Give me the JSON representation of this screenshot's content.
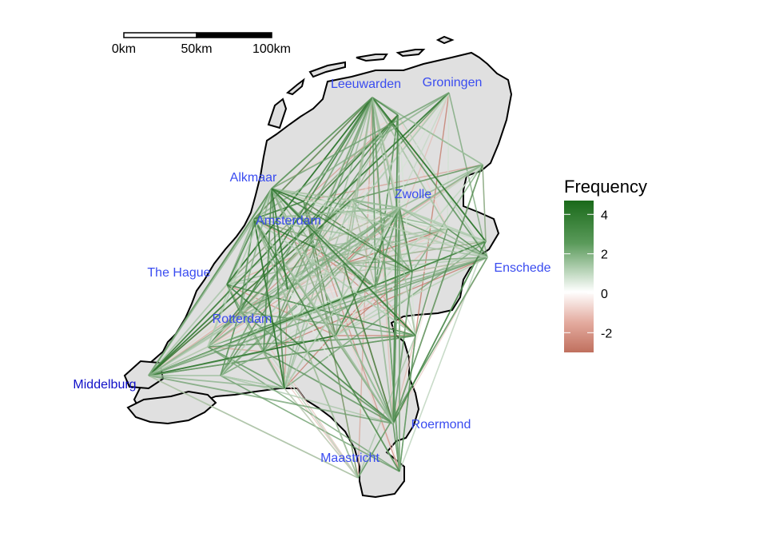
{
  "map": {
    "scale_bar": {
      "labels": [
        "0km",
        "50km",
        "100km"
      ]
    },
    "cities": [
      {
        "id": "leeuwarden",
        "name": "Leeuwarden",
        "color": "#3a4cf0"
      },
      {
        "id": "groningen",
        "name": "Groningen",
        "color": "#3a4cf0"
      },
      {
        "id": "alkmaar",
        "name": "Alkmaar",
        "color": "#3a4cf0"
      },
      {
        "id": "zwolle",
        "name": "Zwolle",
        "color": "#3a4cf0"
      },
      {
        "id": "amsterdam",
        "name": "Amsterdam",
        "color": "#3a4cf0"
      },
      {
        "id": "enschede",
        "name": "Enschede",
        "color": "#3a4cf0"
      },
      {
        "id": "the-hague",
        "name": "The Hague",
        "color": "#3a4cf0"
      },
      {
        "id": "rotterdam",
        "name": "Rotterdam",
        "color": "#3a4cf0"
      },
      {
        "id": "middelburg",
        "name": "Middelburg",
        "color": "#1010c8"
      },
      {
        "id": "roermond",
        "name": "Roermond",
        "color": "#3a4cf0"
      },
      {
        "id": "maastricht",
        "name": "Maastricht",
        "color": "#3a4cf0"
      }
    ],
    "land_color": "#e0e0e0",
    "border_color": "#000000"
  },
  "legend": {
    "title": "Frequency",
    "ticks": [
      "4",
      "2",
      "0",
      "-2"
    ],
    "range": [
      -3,
      4.7
    ],
    "colors": {
      "high": "#1d6b1d",
      "mid": "#ffffff",
      "low": "#c0705e"
    }
  }
}
